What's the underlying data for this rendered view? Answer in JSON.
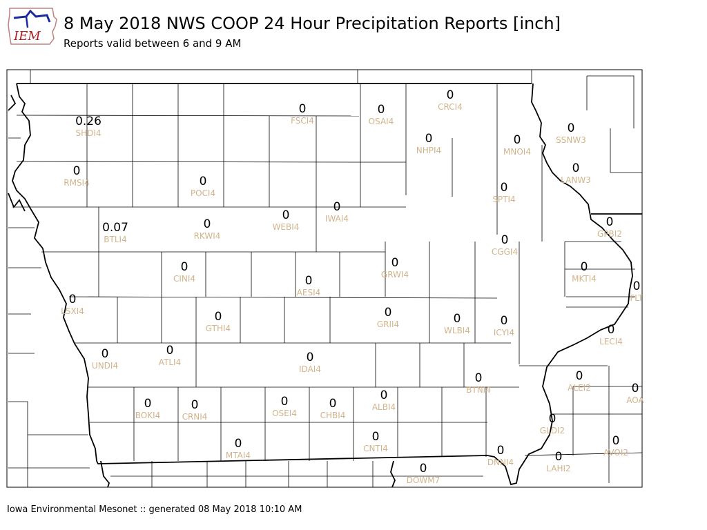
{
  "header": {
    "logo_text": "IEM",
    "title": "8 May 2018 NWS COOP 24 Hour Precipitation Reports [inch]",
    "subtitle": "Reports valid between 6 and 9 AM"
  },
  "footer": "Iowa Environmental Mesonet :: generated 08 May 2018 10:10 AM",
  "colors": {
    "value": "#000000",
    "station": "#d2b48c",
    "county": "#000000"
  },
  "stations": [
    {
      "id": "SHDI4",
      "value": "0.26"
    },
    {
      "id": "RMSI4",
      "value": "0"
    },
    {
      "id": "BTLI4",
      "value": "0.07"
    },
    {
      "id": "LSXI4",
      "value": "0"
    },
    {
      "id": "UNDI4",
      "value": "0"
    },
    {
      "id": "BOKI4",
      "value": "0"
    },
    {
      "id": "CRNI4",
      "value": "0"
    },
    {
      "id": "MTAI4",
      "value": "0"
    },
    {
      "id": "ATLI4",
      "value": "0"
    },
    {
      "id": "CINI4",
      "value": "0"
    },
    {
      "id": "GTHI4",
      "value": "0"
    },
    {
      "id": "RKWI4",
      "value": "0"
    },
    {
      "id": "POCI4",
      "value": "0"
    },
    {
      "id": "WEBI4",
      "value": "0"
    },
    {
      "id": "IWAI4",
      "value": "0"
    },
    {
      "id": "FSCI4",
      "value": "0"
    },
    {
      "id": "OSAI4",
      "value": "0"
    },
    {
      "id": "CRCI4",
      "value": "0"
    },
    {
      "id": "NHPI4",
      "value": "0"
    },
    {
      "id": "MNOI4",
      "value": "0"
    },
    {
      "id": "SPTI4",
      "value": "0"
    },
    {
      "id": "CGGI4",
      "value": "0"
    },
    {
      "id": "AESI4",
      "value": "0"
    },
    {
      "id": "GRWI4",
      "value": "0"
    },
    {
      "id": "GRII4",
      "value": "0"
    },
    {
      "id": "IDAI4",
      "value": "0"
    },
    {
      "id": "OSEI4",
      "value": "0"
    },
    {
      "id": "CHBI4",
      "value": "0"
    },
    {
      "id": "ALBI4",
      "value": "0"
    },
    {
      "id": "CNTI4",
      "value": "0"
    },
    {
      "id": "DOWM7",
      "value": "0"
    },
    {
      "id": "WLBI4",
      "value": "0"
    },
    {
      "id": "ICYI4",
      "value": "0"
    },
    {
      "id": "BTNI4",
      "value": "0"
    },
    {
      "id": "DNNI4",
      "value": "0"
    },
    {
      "id": "SSNW3",
      "value": "0"
    },
    {
      "id": "LANW3",
      "value": "0"
    },
    {
      "id": "GPBI2",
      "value": "0"
    },
    {
      "id": "MKTI4",
      "value": "0"
    },
    {
      "id": "FLT",
      "value": "0"
    },
    {
      "id": "LECI4",
      "value": "0"
    },
    {
      "id": "ALEI2",
      "value": "0"
    },
    {
      "id": "AOA",
      "value": "0"
    },
    {
      "id": "GLDI2",
      "value": "0"
    },
    {
      "id": "AVOI2",
      "value": "0"
    },
    {
      "id": "LAHI2",
      "value": "0"
    }
  ]
}
